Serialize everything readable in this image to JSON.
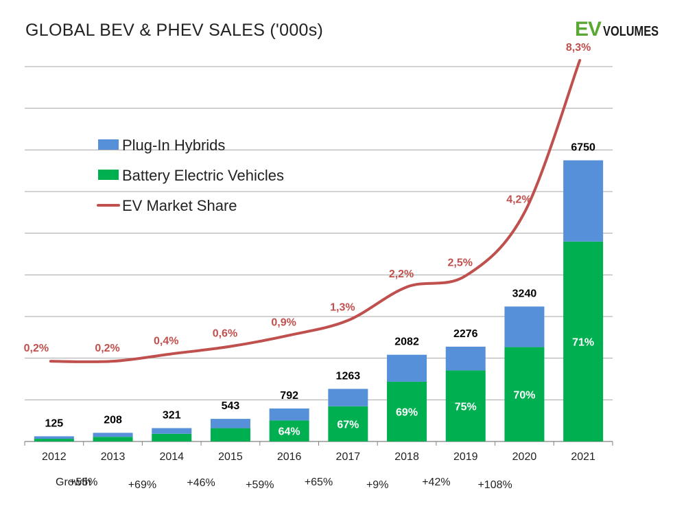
{
  "title": "GLOBAL BEV & PHEV SALES ('000s)",
  "logo": {
    "part1": "EV",
    "part2": "VOLUMES"
  },
  "colors": {
    "phev": "#5690d8",
    "bev": "#00b050",
    "share": "#c0504d",
    "grid": "#a6a6a6",
    "text": "#000000",
    "bev_label": "#ffffff"
  },
  "chart_data": {
    "type": "bar",
    "stacked": true,
    "title": "GLOBAL BEV & PHEV SALES ('000s)",
    "categories": [
      "2012",
      "2013",
      "2014",
      "2015",
      "2016",
      "2017",
      "2018",
      "2019",
      "2020",
      "2021"
    ],
    "totals": [
      125,
      208,
      321,
      543,
      792,
      1263,
      2082,
      2276,
      3240,
      6750
    ],
    "total_labels": [
      "125",
      "208",
      "321",
      "543",
      "792",
      "1263",
      "2082",
      "2276",
      "3240",
      "6750"
    ],
    "series": [
      {
        "name": "Battery Electric Vehicles",
        "values": [
          65,
          110,
          185,
          320,
          505,
          845,
          1435,
          1705,
          2265,
          4800
        ]
      },
      {
        "name": "Plug-In Hybrids",
        "values": [
          60,
          98,
          136,
          223,
          287,
          418,
          647,
          571,
          975,
          1950
        ]
      }
    ],
    "bev_share_labels": [
      "",
      "",
      "",
      "",
      "64%",
      "67%",
      "69%",
      "75%",
      "70%",
      "71%"
    ],
    "market_share": {
      "name": "EV Market Share",
      "values": [
        0.2,
        0.2,
        0.4,
        0.6,
        0.9,
        1.3,
        2.2,
        2.5,
        4.2,
        8.3
      ],
      "labels": [
        "0,2%",
        "0,2%",
        "0,4%",
        "0,6%",
        "0,9%",
        "1,3%",
        "2,2%",
        "2,5%",
        "4,2%",
        "8,3%"
      ]
    },
    "growth_label": "Growth",
    "growth": [
      "+55%",
      "+69%",
      "+46%",
      "+59%",
      "+65%",
      "+9%",
      "+42%",
      "+108%"
    ],
    "legend": [
      "Plug-In Hybrids",
      "Battery Electric Vehicles",
      "EV Market Share"
    ],
    "legend_position": "top-left",
    "ylim": [
      0,
      9000
    ],
    "grid": true
  }
}
